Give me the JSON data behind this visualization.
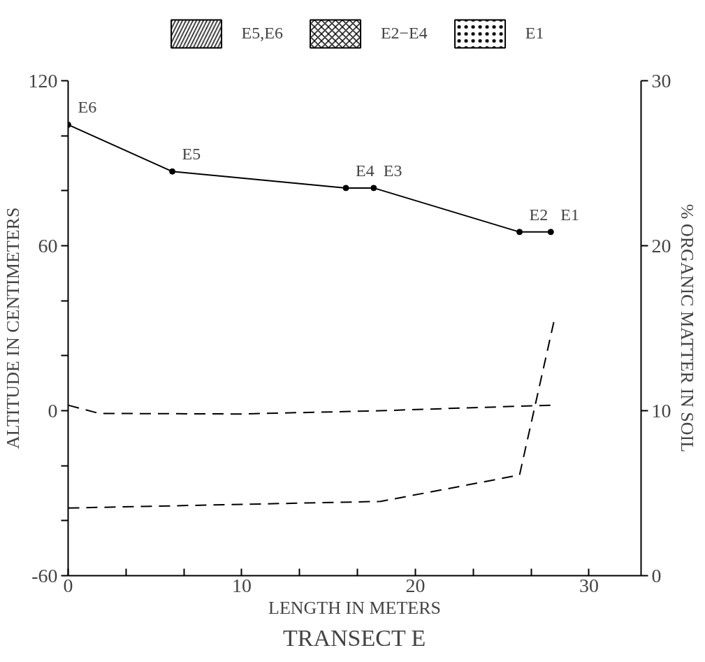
{
  "chart_data": {
    "type": "line",
    "title": "TRANSECT E",
    "xlabel": "LENGTH IN METERS",
    "ylabel": "ALTITUDE IN CENTIMETERS",
    "y2label": "% ORGANIC MATTER IN SOIL",
    "xlim": [
      0,
      33
    ],
    "xticks": [
      0,
      {
        "value": 3.333,
        "label": null
      },
      {
        "value": 6.667,
        "label": null
      },
      10,
      {
        "value": 13.333,
        "label": null
      },
      {
        "value": 16.667,
        "label": null
      },
      20,
      {
        "value": 23.333,
        "label": null
      },
      {
        "value": 26.667,
        "label": null
      },
      30
    ],
    "ylim": [
      -60,
      120
    ],
    "yticks": [
      -60,
      {
        "value": -40,
        "label": null
      },
      {
        "value": -20,
        "label": null
      },
      0,
      {
        "value": 20,
        "label": null
      },
      {
        "value": 40,
        "label": null
      },
      60,
      {
        "value": 80,
        "label": null
      },
      {
        "value": 100,
        "label": null
      },
      120
    ],
    "y2lim": [
      0,
      30
    ],
    "y2ticks": [
      0,
      10,
      20,
      30
    ],
    "grid": false,
    "legend": "top",
    "series": [
      {
        "color": "#000000",
        "marker": "circle",
        "line_style": "solid",
        "x": [
          0,
          6,
          16,
          17.6,
          26,
          27.8
        ],
        "values": [
          104,
          87,
          81,
          81,
          65,
          65
        ]
      },
      {
        "color": "#000000",
        "marker": "none",
        "line_style": "dashed",
        "x": [
          0,
          1.8,
          10,
          18,
          27.8
        ],
        "values": [
          2,
          -1,
          -1.2,
          0,
          2
        ]
      },
      {
        "color": "#000000",
        "marker": "none",
        "line_style": "dashed",
        "axis": "y2",
        "x": [
          0,
          18,
          26,
          28
        ],
        "values": [
          4.1,
          4.5,
          6.1,
          15.5
        ]
      },
      {
        "type": "area",
        "name": "E5,E6",
        "color": "#000000",
        "values": [
          null
        ]
      },
      {
        "type": "area",
        "name": "E2−E4",
        "color": "#000000",
        "values": [
          null
        ]
      },
      {
        "type": "area",
        "name": "E1",
        "color": "#000000",
        "values": [
          null
        ]
      }
    ],
    "annotations": [
      {
        "text": "E6",
        "x": 0,
        "y": 104
      },
      {
        "text": "E5",
        "x": 6,
        "y": 87
      },
      {
        "text": "E4",
        "x": 16,
        "y": 81
      },
      {
        "text": "E3",
        "x": 17.6,
        "y": 81
      },
      {
        "text": "E2",
        "x": 26,
        "y": 65
      },
      {
        "text": "E1",
        "x": 27.8,
        "y": 65
      }
    ]
  }
}
